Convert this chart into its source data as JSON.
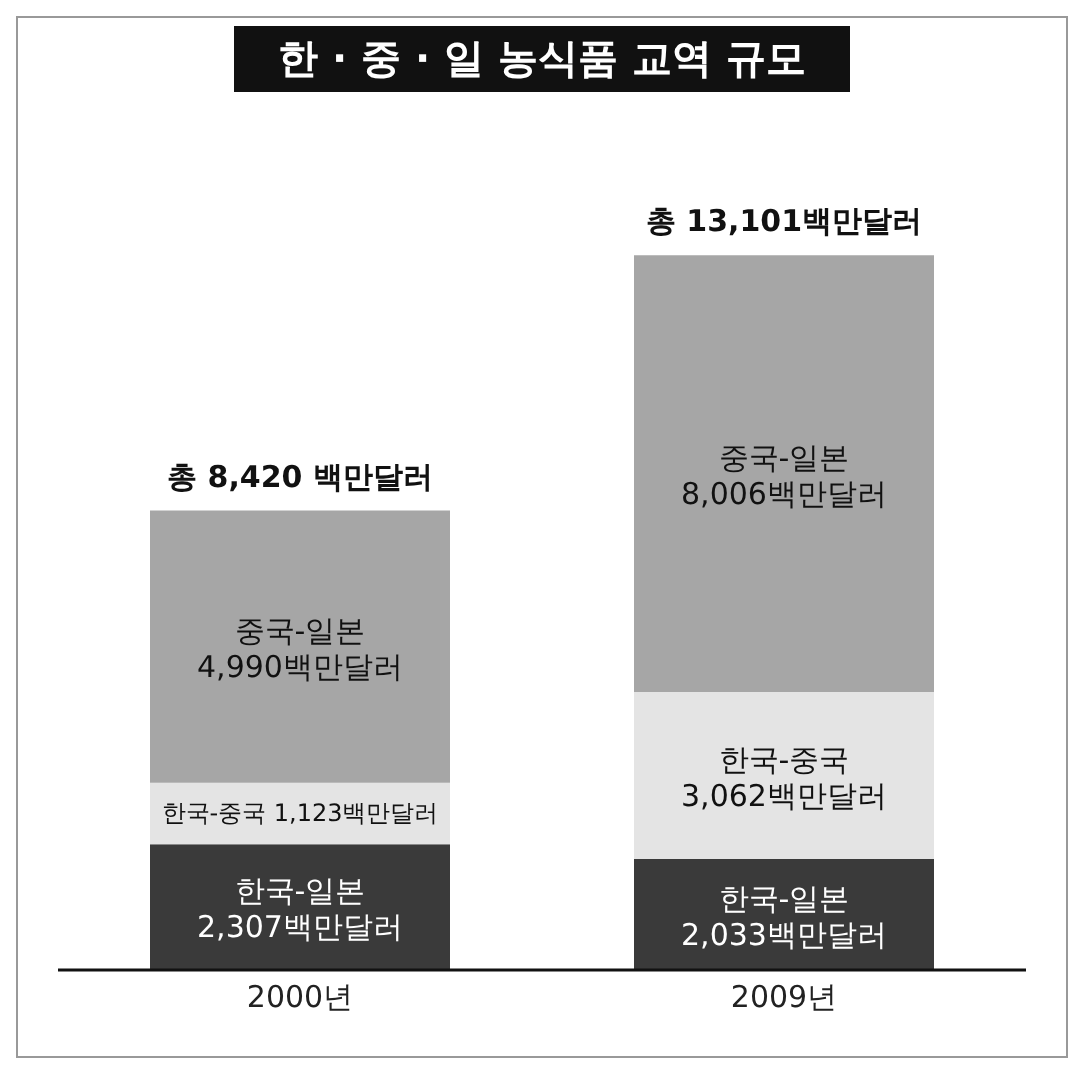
{
  "chart_data": {
    "type": "bar",
    "title": "한 · 중 · 일 농식품 교역 규모",
    "categories": [
      "2000년",
      "2009년"
    ],
    "stacked": true,
    "tick_labels": "x",
    "grid": false,
    "legend": false,
    "series": [
      {
        "name": "한국-일본",
        "color": "#3a3a3a",
        "values": [
          2307,
          2033
        ],
        "value_labels": [
          "2,307백만달러",
          "2,033백만달러"
        ]
      },
      {
        "name": "한국-중국",
        "color": "#e4e4e4",
        "values": [
          1123,
          3062
        ],
        "value_labels": [
          "1,123백만달러",
          "3,062백만달러"
        ]
      },
      {
        "name": "중국-일본",
        "color": "#a6a6a6",
        "values": [
          4990,
          8006
        ],
        "value_labels": [
          "4,990백만달러",
          "8,006백만달러"
        ]
      }
    ],
    "totals": [
      "총 8,420 백만달러",
      "총 13,101백만달러"
    ]
  }
}
